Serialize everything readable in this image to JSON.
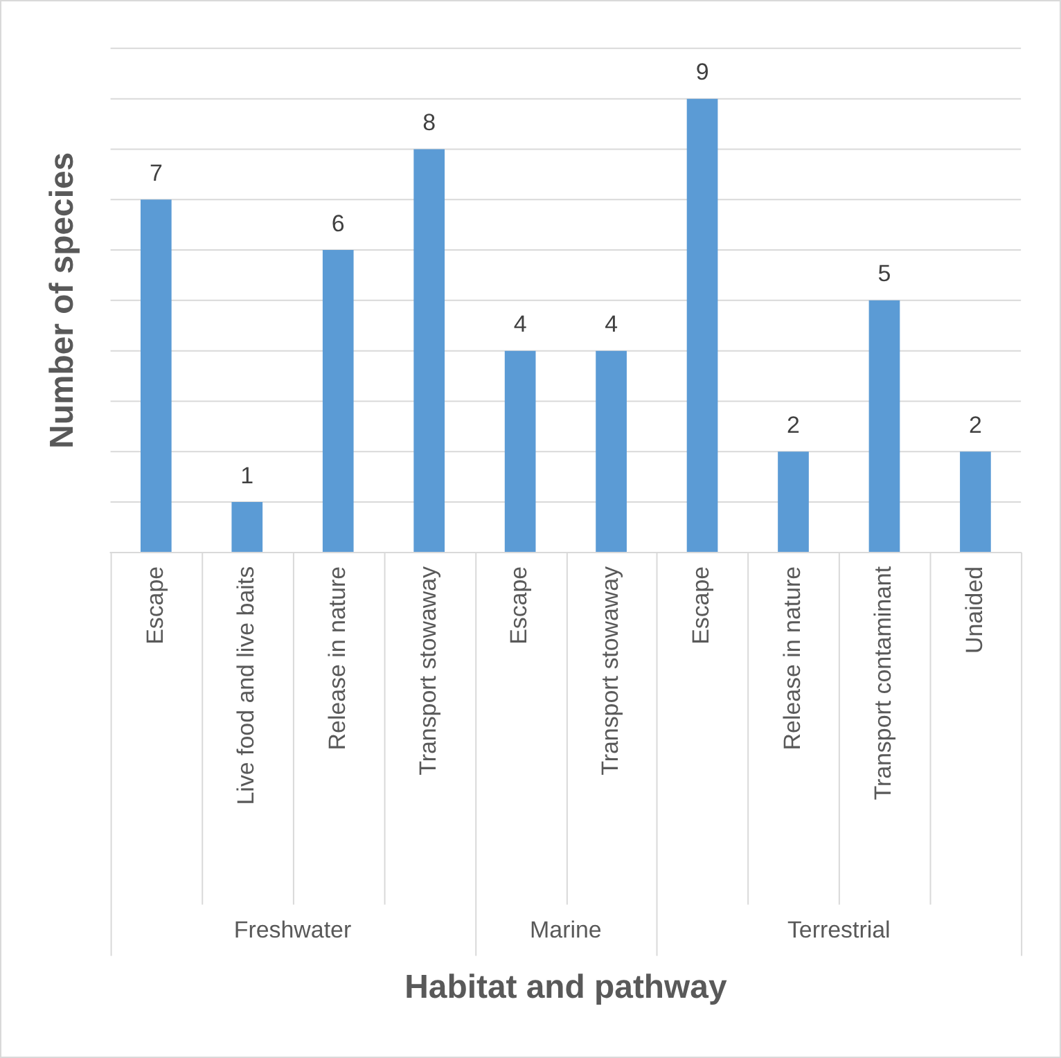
{
  "chart_data": {
    "type": "bar",
    "xlabel": "Habitat and pathway",
    "ylabel": "Number of species",
    "categories": [
      "Escape",
      "Live food and live baits",
      "Release in nature",
      "Transport stowaway",
      "Escape",
      "Transport stowaway",
      "Escape",
      "Release in nature",
      "Transport contaminant",
      "Unaided"
    ],
    "values": [
      7,
      1,
      6,
      8,
      4,
      4,
      9,
      2,
      5,
      2
    ],
    "color": "#5b9bd5",
    "ylim": [
      0,
      10
    ],
    "yticks": [
      {
        "value": 0,
        "label": null
      },
      {
        "value": 1,
        "label": null
      },
      {
        "value": 2,
        "label": null
      },
      {
        "value": 3,
        "label": null
      },
      {
        "value": 4,
        "label": null
      },
      {
        "value": 5,
        "label": null
      },
      {
        "value": 6,
        "label": null
      },
      {
        "value": 7,
        "label": null
      },
      {
        "value": 8,
        "label": null
      },
      {
        "value": 9,
        "label": null
      },
      {
        "value": 10,
        "label": null
      }
    ],
    "grid": "y",
    "tick_labels": "x",
    "data_labels": true,
    "legend": false,
    "annotations": [
      "Freshwater",
      "Marine",
      "Terrestrial"
    ]
  }
}
